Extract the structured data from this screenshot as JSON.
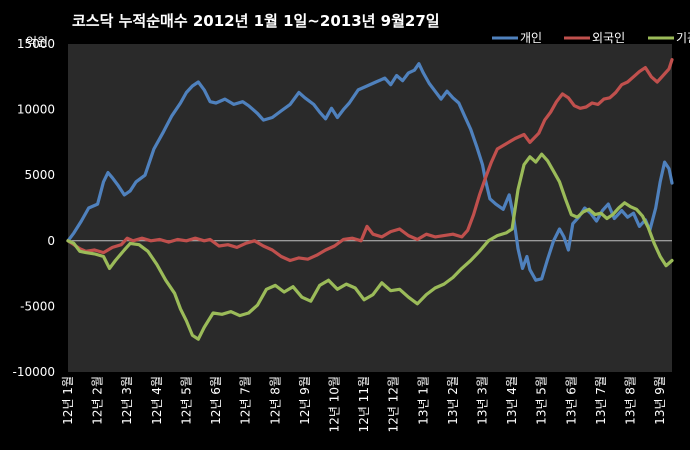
{
  "chart_data": {
    "type": "line",
    "title": "코스닥  누적순매수 2012년 1월 1일~2013년 9월27일",
    "unit_label": "억원",
    "ylim": [
      -10000,
      15000
    ],
    "yticks": [
      15000,
      10000,
      5000,
      0,
      -5000,
      -10000
    ],
    "x_range": [
      0,
      20.4
    ],
    "categories": [
      "12년 1월",
      "12년 2월",
      "12년 3월",
      "12년 4월",
      "12년 5월",
      "12년 6월",
      "12년 7월",
      "12년 8월",
      "12년 9월",
      "12년 10월",
      "12년 11월",
      "12년 12월",
      "13년 1월",
      "13년 2월",
      "13년 3월",
      "13년 4월",
      "13년 5월",
      "13년 6월",
      "13년 7월",
      "13년 8월",
      "13년 9월"
    ],
    "legend_position": "top-right",
    "grid": false,
    "series": [
      {
        "name": "개인",
        "color": "#4F81BD",
        "points": [
          [
            0,
            0
          ],
          [
            0.2,
            600
          ],
          [
            0.45,
            1500
          ],
          [
            0.7,
            2500
          ],
          [
            1.0,
            2800
          ],
          [
            1.2,
            4500
          ],
          [
            1.35,
            5200
          ],
          [
            1.5,
            4800
          ],
          [
            1.7,
            4200
          ],
          [
            1.9,
            3500
          ],
          [
            2.1,
            3800
          ],
          [
            2.3,
            4500
          ],
          [
            2.6,
            5000
          ],
          [
            2.9,
            7000
          ],
          [
            3.2,
            8200
          ],
          [
            3.5,
            9500
          ],
          [
            3.8,
            10500
          ],
          [
            4.0,
            11300
          ],
          [
            4.2,
            11800
          ],
          [
            4.4,
            12100
          ],
          [
            4.6,
            11500
          ],
          [
            4.8,
            10600
          ],
          [
            5.0,
            10500
          ],
          [
            5.3,
            10800
          ],
          [
            5.6,
            10400
          ],
          [
            5.9,
            10600
          ],
          [
            6.1,
            10300
          ],
          [
            6.4,
            9700
          ],
          [
            6.6,
            9200
          ],
          [
            6.9,
            9400
          ],
          [
            7.2,
            9900
          ],
          [
            7.5,
            10400
          ],
          [
            7.8,
            11300
          ],
          [
            8.0,
            10900
          ],
          [
            8.3,
            10400
          ],
          [
            8.5,
            9800
          ],
          [
            8.7,
            9300
          ],
          [
            8.9,
            10100
          ],
          [
            9.1,
            9400
          ],
          [
            9.3,
            10000
          ],
          [
            9.5,
            10500
          ],
          [
            9.8,
            11500
          ],
          [
            10.1,
            11800
          ],
          [
            10.4,
            12100
          ],
          [
            10.7,
            12400
          ],
          [
            10.9,
            11900
          ],
          [
            11.1,
            12600
          ],
          [
            11.3,
            12200
          ],
          [
            11.5,
            12800
          ],
          [
            11.7,
            13000
          ],
          [
            11.85,
            13500
          ],
          [
            12.0,
            12800
          ],
          [
            12.2,
            12000
          ],
          [
            12.4,
            11400
          ],
          [
            12.6,
            10800
          ],
          [
            12.8,
            11400
          ],
          [
            13.0,
            10900
          ],
          [
            13.2,
            10500
          ],
          [
            13.4,
            9500
          ],
          [
            13.6,
            8500
          ],
          [
            13.8,
            7200
          ],
          [
            14.0,
            5800
          ],
          [
            14.1,
            4600
          ],
          [
            14.25,
            3200
          ],
          [
            14.45,
            2800
          ],
          [
            14.7,
            2400
          ],
          [
            14.9,
            3500
          ],
          [
            15.05,
            1800
          ],
          [
            15.2,
            -600
          ],
          [
            15.35,
            -2100
          ],
          [
            15.5,
            -1200
          ],
          [
            15.6,
            -2200
          ],
          [
            15.8,
            -3000
          ],
          [
            16.0,
            -2900
          ],
          [
            16.2,
            -1400
          ],
          [
            16.4,
            0
          ],
          [
            16.6,
            900
          ],
          [
            16.75,
            300
          ],
          [
            16.9,
            -700
          ],
          [
            17.05,
            1300
          ],
          [
            17.25,
            1800
          ],
          [
            17.45,
            2500
          ],
          [
            17.65,
            2100
          ],
          [
            17.85,
            1500
          ],
          [
            18.05,
            2300
          ],
          [
            18.25,
            2800
          ],
          [
            18.45,
            1700
          ],
          [
            18.7,
            2300
          ],
          [
            18.9,
            1800
          ],
          [
            19.1,
            2100
          ],
          [
            19.3,
            1100
          ],
          [
            19.5,
            1600
          ],
          [
            19.65,
            800
          ],
          [
            19.85,
            2500
          ],
          [
            20.0,
            4500
          ],
          [
            20.15,
            6000
          ],
          [
            20.3,
            5500
          ],
          [
            20.4,
            4400
          ]
        ]
      },
      {
        "name": "외국인",
        "color": "#C0504D",
        "points": [
          [
            0,
            0
          ],
          [
            0.2,
            -300
          ],
          [
            0.4,
            -600
          ],
          [
            0.6,
            -800
          ],
          [
            0.9,
            -700
          ],
          [
            1.2,
            -900
          ],
          [
            1.5,
            -500
          ],
          [
            1.8,
            -300
          ],
          [
            2.0,
            200
          ],
          [
            2.2,
            0
          ],
          [
            2.5,
            200
          ],
          [
            2.8,
            0
          ],
          [
            3.1,
            100
          ],
          [
            3.4,
            -100
          ],
          [
            3.7,
            100
          ],
          [
            4.0,
            0
          ],
          [
            4.3,
            200
          ],
          [
            4.6,
            0
          ],
          [
            4.8,
            100
          ],
          [
            5.1,
            -400
          ],
          [
            5.4,
            -300
          ],
          [
            5.7,
            -500
          ],
          [
            6.0,
            -200
          ],
          [
            6.3,
            0
          ],
          [
            6.6,
            -400
          ],
          [
            6.9,
            -700
          ],
          [
            7.2,
            -1200
          ],
          [
            7.5,
            -1500
          ],
          [
            7.8,
            -1300
          ],
          [
            8.1,
            -1400
          ],
          [
            8.4,
            -1100
          ],
          [
            8.7,
            -700
          ],
          [
            9.0,
            -400
          ],
          [
            9.3,
            100
          ],
          [
            9.6,
            200
          ],
          [
            9.9,
            0
          ],
          [
            10.1,
            1100
          ],
          [
            10.3,
            500
          ],
          [
            10.6,
            300
          ],
          [
            10.9,
            700
          ],
          [
            11.2,
            900
          ],
          [
            11.5,
            400
          ],
          [
            11.8,
            100
          ],
          [
            12.1,
            500
          ],
          [
            12.4,
            300
          ],
          [
            12.7,
            400
          ],
          [
            13.0,
            500
          ],
          [
            13.3,
            300
          ],
          [
            13.5,
            800
          ],
          [
            13.7,
            2000
          ],
          [
            13.9,
            3500
          ],
          [
            14.1,
            4800
          ],
          [
            14.3,
            6000
          ],
          [
            14.5,
            7000
          ],
          [
            14.8,
            7400
          ],
          [
            15.1,
            7800
          ],
          [
            15.4,
            8100
          ],
          [
            15.6,
            7500
          ],
          [
            15.9,
            8200
          ],
          [
            16.1,
            9200
          ],
          [
            16.3,
            9800
          ],
          [
            16.5,
            10600
          ],
          [
            16.7,
            11200
          ],
          [
            16.9,
            10900
          ],
          [
            17.1,
            10300
          ],
          [
            17.3,
            10100
          ],
          [
            17.5,
            10200
          ],
          [
            17.7,
            10500
          ],
          [
            17.9,
            10400
          ],
          [
            18.1,
            10800
          ],
          [
            18.3,
            10900
          ],
          [
            18.5,
            11300
          ],
          [
            18.7,
            11900
          ],
          [
            18.9,
            12100
          ],
          [
            19.1,
            12500
          ],
          [
            19.3,
            12900
          ],
          [
            19.5,
            13200
          ],
          [
            19.7,
            12500
          ],
          [
            19.9,
            12100
          ],
          [
            20.1,
            12600
          ],
          [
            20.3,
            13100
          ],
          [
            20.4,
            13800
          ]
        ]
      },
      {
        "name": "기관",
        "color": "#9BBB59",
        "points": [
          [
            0,
            0
          ],
          [
            0.2,
            -200
          ],
          [
            0.4,
            -800
          ],
          [
            0.6,
            -900
          ],
          [
            0.9,
            -1000
          ],
          [
            1.2,
            -1200
          ],
          [
            1.4,
            -2100
          ],
          [
            1.6,
            -1500
          ],
          [
            1.9,
            -700
          ],
          [
            2.1,
            -200
          ],
          [
            2.4,
            -300
          ],
          [
            2.7,
            -800
          ],
          [
            3.0,
            -1800
          ],
          [
            3.3,
            -3000
          ],
          [
            3.6,
            -4000
          ],
          [
            3.8,
            -5200
          ],
          [
            4.0,
            -6100
          ],
          [
            4.2,
            -7200
          ],
          [
            4.4,
            -7500
          ],
          [
            4.6,
            -6600
          ],
          [
            4.9,
            -5500
          ],
          [
            5.2,
            -5600
          ],
          [
            5.5,
            -5400
          ],
          [
            5.8,
            -5700
          ],
          [
            6.1,
            -5500
          ],
          [
            6.4,
            -4900
          ],
          [
            6.7,
            -3700
          ],
          [
            7.0,
            -3400
          ],
          [
            7.3,
            -3900
          ],
          [
            7.6,
            -3500
          ],
          [
            7.9,
            -4300
          ],
          [
            8.2,
            -4600
          ],
          [
            8.5,
            -3400
          ],
          [
            8.8,
            -3000
          ],
          [
            9.1,
            -3700
          ],
          [
            9.4,
            -3300
          ],
          [
            9.7,
            -3600
          ],
          [
            10.0,
            -4500
          ],
          [
            10.3,
            -4100
          ],
          [
            10.6,
            -3200
          ],
          [
            10.9,
            -3800
          ],
          [
            11.2,
            -3700
          ],
          [
            11.5,
            -4300
          ],
          [
            11.8,
            -4800
          ],
          [
            12.1,
            -4100
          ],
          [
            12.4,
            -3600
          ],
          [
            12.7,
            -3300
          ],
          [
            13.0,
            -2800
          ],
          [
            13.3,
            -2100
          ],
          [
            13.6,
            -1500
          ],
          [
            13.9,
            -800
          ],
          [
            14.2,
            0
          ],
          [
            14.5,
            400
          ],
          [
            14.8,
            600
          ],
          [
            15.0,
            900
          ],
          [
            15.2,
            3900
          ],
          [
            15.4,
            5800
          ],
          [
            15.6,
            6400
          ],
          [
            15.8,
            6000
          ],
          [
            16.0,
            6600
          ],
          [
            16.2,
            6100
          ],
          [
            16.4,
            5300
          ],
          [
            16.6,
            4500
          ],
          [
            16.8,
            3200
          ],
          [
            17.0,
            2000
          ],
          [
            17.2,
            1800
          ],
          [
            17.4,
            2200
          ],
          [
            17.6,
            2400
          ],
          [
            17.8,
            2000
          ],
          [
            18.0,
            2100
          ],
          [
            18.2,
            1700
          ],
          [
            18.4,
            2000
          ],
          [
            18.6,
            2500
          ],
          [
            18.8,
            2900
          ],
          [
            19.0,
            2600
          ],
          [
            19.2,
            2400
          ],
          [
            19.4,
            1900
          ],
          [
            19.6,
            1000
          ],
          [
            19.8,
            -200
          ],
          [
            20.0,
            -1200
          ],
          [
            20.2,
            -1900
          ],
          [
            20.4,
            -1500
          ]
        ]
      }
    ]
  }
}
